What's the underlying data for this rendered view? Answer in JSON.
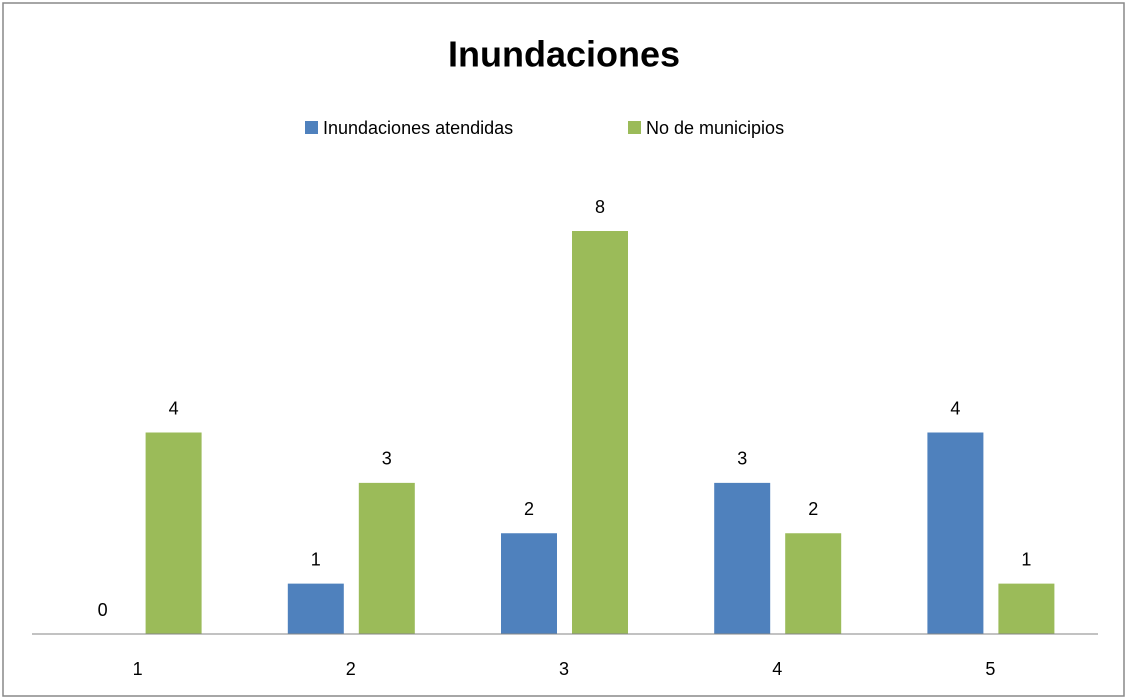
{
  "chart_data": {
    "type": "bar",
    "title": "Inundaciones",
    "categories": [
      "1",
      "2",
      "3",
      "4",
      "5"
    ],
    "series": [
      {
        "name": "Inundaciones atendidas",
        "color": "#4f81bd",
        "values": [
          0,
          1,
          2,
          3,
          4
        ]
      },
      {
        "name": "No de municipios",
        "color": "#9bbb59",
        "values": [
          4,
          3,
          8,
          2,
          1
        ]
      }
    ],
    "legend": "top",
    "data_labels": true
  }
}
